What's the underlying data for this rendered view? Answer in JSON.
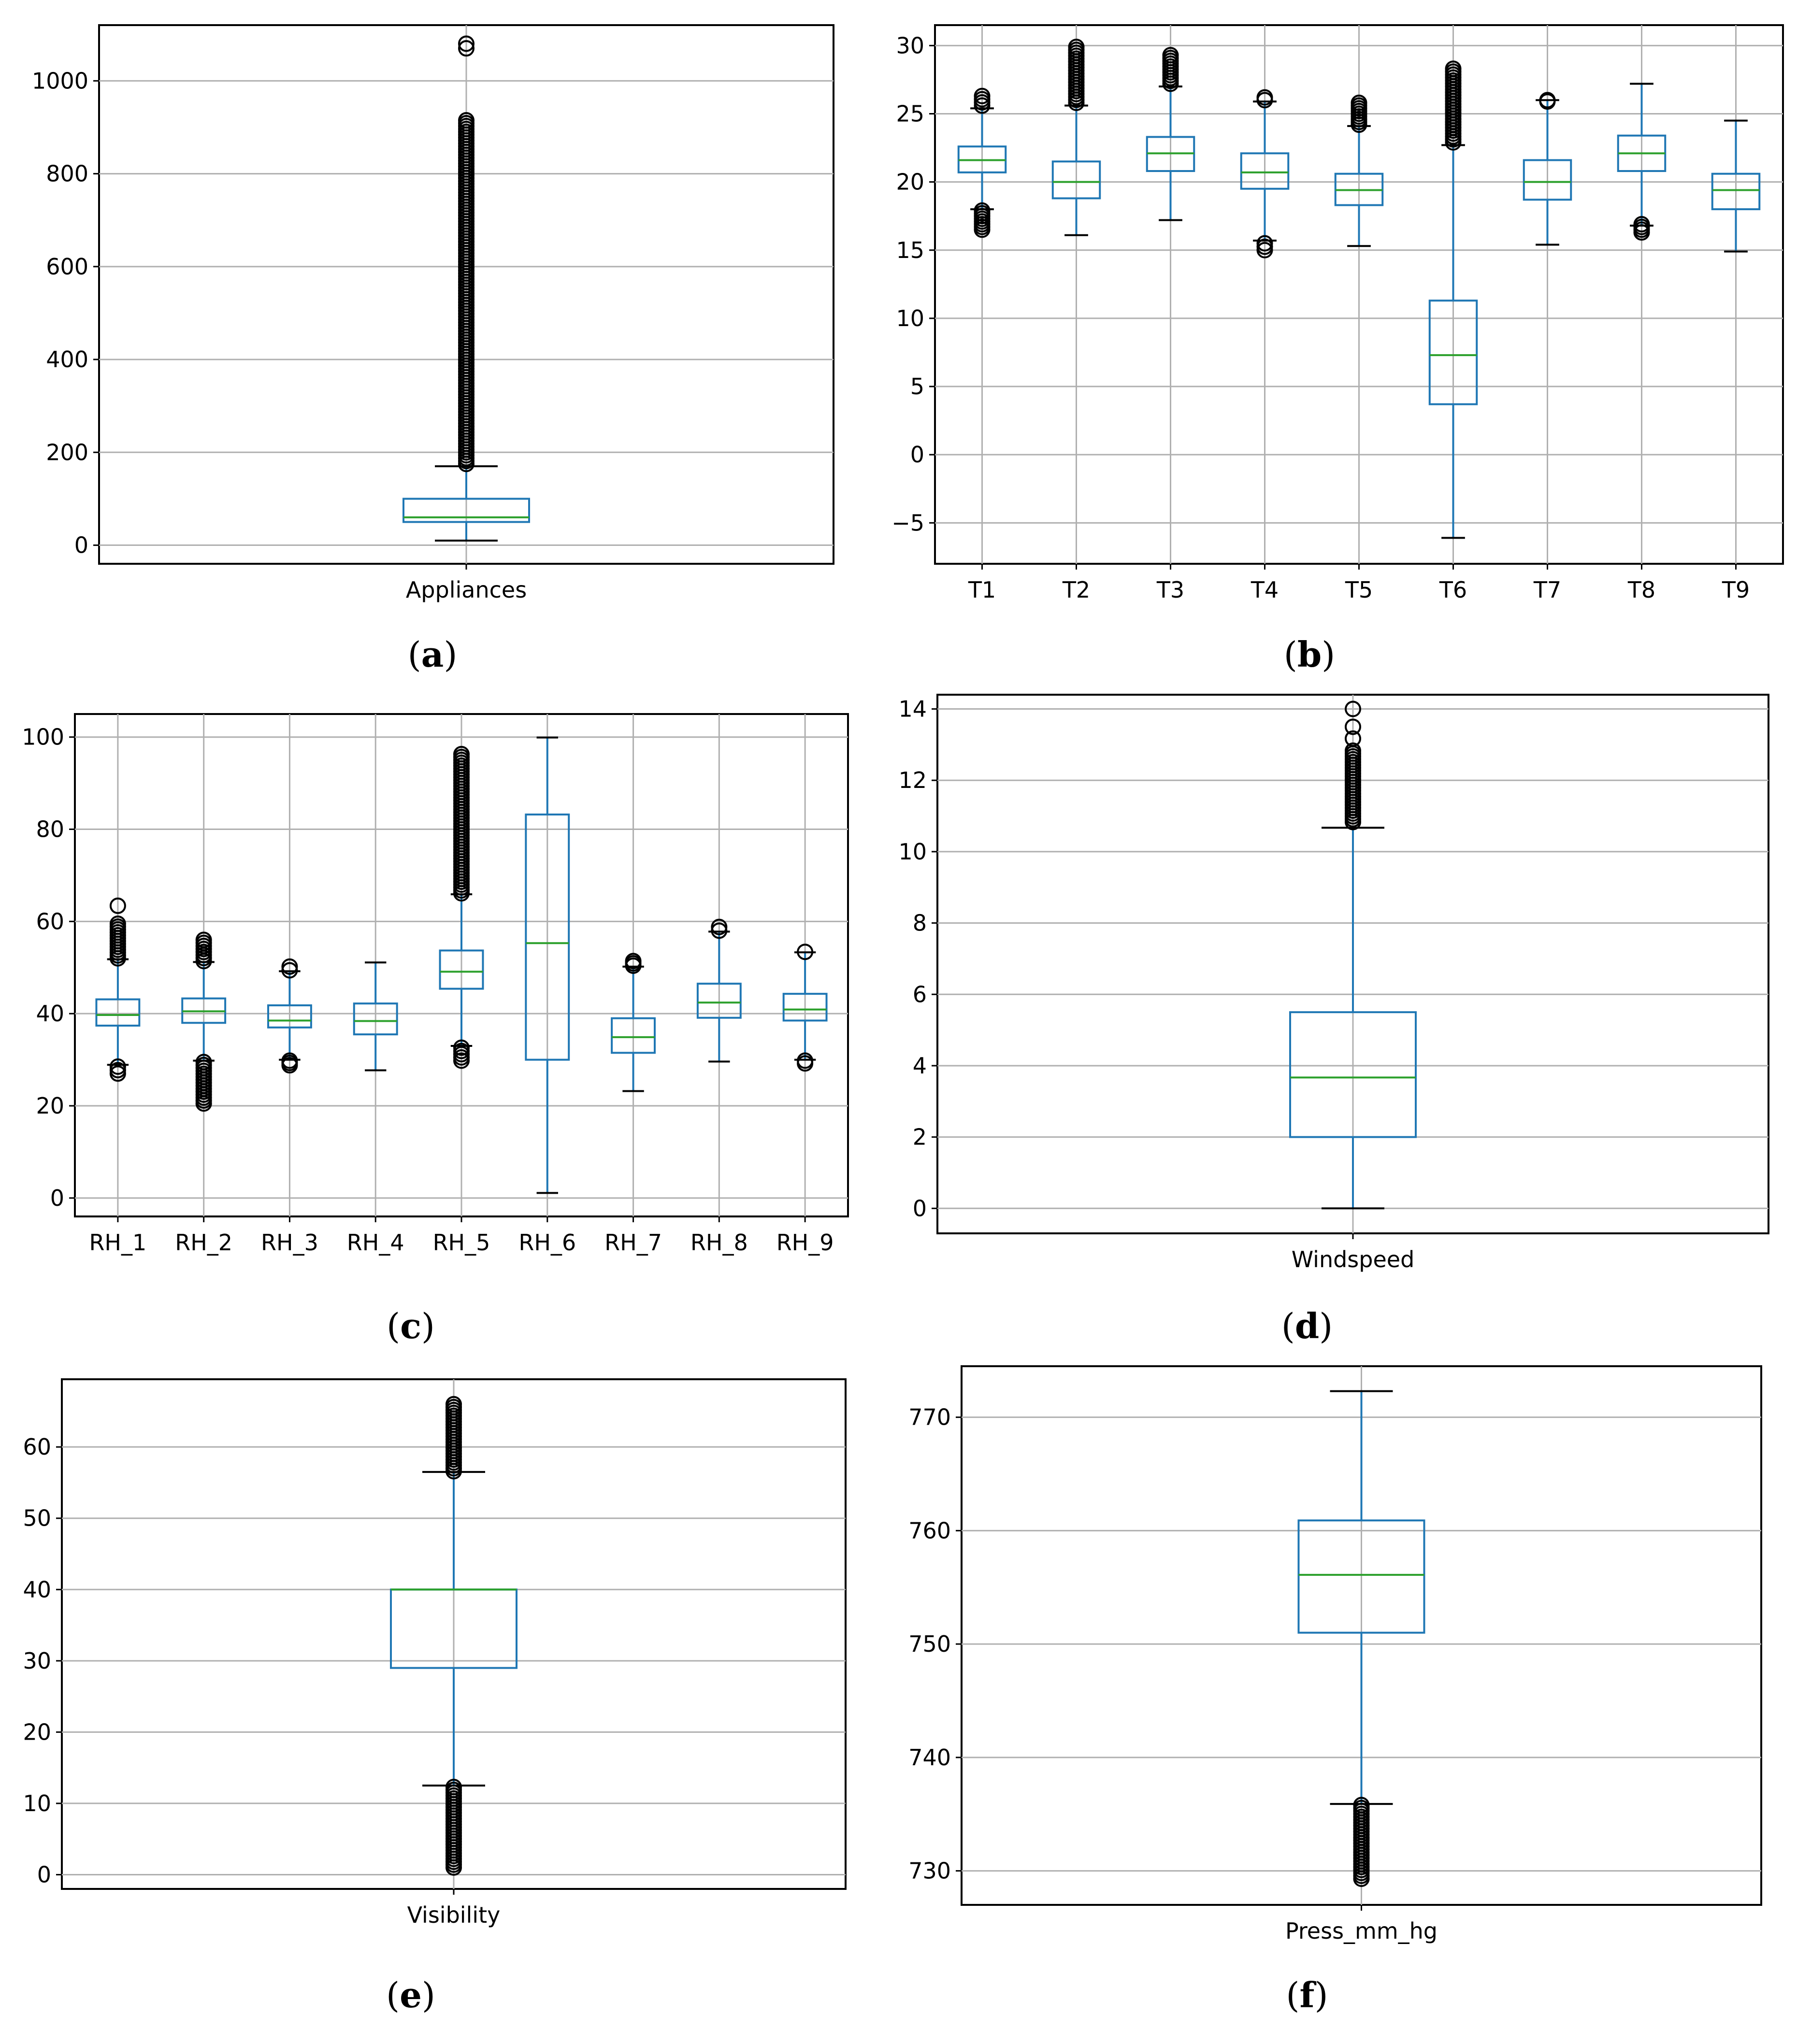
{
  "figure": {
    "captions": [
      "(a)",
      "(b)",
      "(c)",
      "(d)",
      "(e)",
      "(f)"
    ]
  },
  "colors": {
    "box": "#1f77b4",
    "median": "#2ca02c",
    "grid": "#b0b0b0",
    "outlier": "#000000",
    "axes": "#000000"
  },
  "chart_data": [
    {
      "panel": "a",
      "caption": "(a)",
      "type": "box",
      "ylim": [
        -40,
        1120
      ],
      "yticks": [
        0,
        200,
        400,
        600,
        800,
        1000
      ],
      "categories": [
        "Appliances"
      ],
      "boxes": [
        {
          "name": "Appliances",
          "whislo": 10,
          "q1": 50,
          "med": 60,
          "q3": 100,
          "whishi": 170,
          "outliers_high": [
            175,
            915
          ],
          "outliers_low": null,
          "extra_outliers": [
            1070,
            1080
          ]
        }
      ]
    },
    {
      "panel": "b",
      "caption": "(b)",
      "type": "box",
      "ylim": [
        -8,
        31.5
      ],
      "yticks": [
        -5,
        0,
        5,
        10,
        15,
        20,
        25,
        30
      ],
      "ytick_labels": [
        "−5",
        "0",
        "5",
        "10",
        "15",
        "20",
        "25",
        "30"
      ],
      "categories": [
        "T1",
        "T2",
        "T3",
        "T4",
        "T5",
        "T6",
        "T7",
        "T8",
        "T9"
      ],
      "boxes": [
        {
          "name": "T1",
          "whislo": 18.0,
          "q1": 20.7,
          "med": 21.6,
          "q3": 22.6,
          "whishi": 25.4,
          "outliers_high": [
            25.6,
            26.3
          ],
          "outliers_low": [
            16.5,
            17.9
          ],
          "extra_outliers": []
        },
        {
          "name": "T2",
          "whislo": 16.1,
          "q1": 18.8,
          "med": 20.0,
          "q3": 21.5,
          "whishi": 25.6,
          "outliers_high": [
            25.8,
            29.9
          ],
          "outliers_low": null,
          "extra_outliers": []
        },
        {
          "name": "T3",
          "whislo": 17.2,
          "q1": 20.8,
          "med": 22.1,
          "q3": 23.3,
          "whishi": 27.0,
          "outliers_high": [
            27.2,
            29.3
          ],
          "outliers_low": null,
          "extra_outliers": []
        },
        {
          "name": "T4",
          "whislo": 15.7,
          "q1": 19.5,
          "med": 20.7,
          "q3": 22.1,
          "whishi": 25.9,
          "outliers_high": [
            26.0,
            26.2
          ],
          "outliers_low": [
            15.0,
            15.5
          ],
          "extra_outliers": []
        },
        {
          "name": "T5",
          "whislo": 15.3,
          "q1": 18.3,
          "med": 19.4,
          "q3": 20.6,
          "whishi": 24.1,
          "outliers_high": [
            24.2,
            25.8
          ],
          "outliers_low": null,
          "extra_outliers": []
        },
        {
          "name": "T6",
          "whislo": -6.1,
          "q1": 3.7,
          "med": 7.3,
          "q3": 11.3,
          "whishi": 22.7,
          "outliers_high": [
            22.9,
            28.3
          ],
          "outliers_low": null,
          "extra_outliers": []
        },
        {
          "name": "T7",
          "whislo": 15.4,
          "q1": 18.7,
          "med": 20.0,
          "q3": 21.6,
          "whishi": 26.0,
          "outliers_high": [
            25.9,
            26.0
          ],
          "outliers_low": null,
          "extra_outliers": []
        },
        {
          "name": "T8",
          "whislo": 16.8,
          "q1": 20.8,
          "med": 22.1,
          "q3": 23.4,
          "whishi": 27.2,
          "outliers_high": null,
          "outliers_low": [
            16.3,
            16.9
          ],
          "extra_outliers": []
        },
        {
          "name": "T9",
          "whislo": 14.9,
          "q1": 18.0,
          "med": 19.4,
          "q3": 20.6,
          "whishi": 24.5,
          "outliers_high": null,
          "outliers_low": null,
          "extra_outliers": []
        }
      ]
    },
    {
      "panel": "c",
      "caption": "(c)",
      "type": "box",
      "ylim": [
        -4,
        105
      ],
      "yticks": [
        0,
        20,
        40,
        60,
        80,
        100
      ],
      "categories": [
        "RH_1",
        "RH_2",
        "RH_3",
        "RH_4",
        "RH_5",
        "RH_6",
        "RH_7",
        "RH_8",
        "RH_9"
      ],
      "boxes": [
        {
          "name": "RH_1",
          "whislo": 28.9,
          "q1": 37.4,
          "med": 39.7,
          "q3": 43.1,
          "whishi": 51.8,
          "outliers_high": [
            52.0,
            59.5
          ],
          "outliers_low": [
            27.0,
            28.5
          ],
          "extra_outliers": [
            63.4
          ]
        },
        {
          "name": "RH_2",
          "whislo": 29.8,
          "q1": 38.0,
          "med": 40.5,
          "q3": 43.3,
          "whishi": 51.2,
          "outliers_high": [
            51.4,
            56.0
          ],
          "outliers_low": [
            20.5,
            29.5
          ],
          "extra_outliers": []
        },
        {
          "name": "RH_3",
          "whislo": 30.0,
          "q1": 37.0,
          "med": 38.5,
          "q3": 41.8,
          "whishi": 49.2,
          "outliers_high": [
            49.4,
            50.2
          ],
          "outliers_low": [
            28.8,
            29.8
          ],
          "extra_outliers": []
        },
        {
          "name": "RH_4",
          "whislo": 27.7,
          "q1": 35.5,
          "med": 38.4,
          "q3": 42.2,
          "whishi": 51.1,
          "outliers_high": null,
          "outliers_low": null,
          "extra_outliers": []
        },
        {
          "name": "RH_5",
          "whislo": 33.0,
          "q1": 45.4,
          "med": 49.1,
          "q3": 53.7,
          "whishi": 65.9,
          "outliers_high": [
            66.1,
            96.3
          ],
          "outliers_low": [
            29.8,
            32.6
          ],
          "extra_outliers": []
        },
        {
          "name": "RH_6",
          "whislo": 1.1,
          "q1": 30.0,
          "med": 55.3,
          "q3": 83.2,
          "whishi": 99.9,
          "outliers_high": null,
          "outliers_low": null,
          "extra_outliers": []
        },
        {
          "name": "RH_7",
          "whislo": 23.2,
          "q1": 31.5,
          "med": 34.9,
          "q3": 39.0,
          "whishi": 50.2,
          "outliers_high": [
            50.4,
            51.4
          ],
          "outliers_low": null,
          "extra_outliers": []
        },
        {
          "name": "RH_8",
          "whislo": 29.6,
          "q1": 39.1,
          "med": 42.4,
          "q3": 46.5,
          "whishi": 57.8,
          "outliers_high": [
            58.0,
            58.8
          ],
          "outliers_low": null,
          "extra_outliers": []
        },
        {
          "name": "RH_9",
          "whislo": 30.0,
          "q1": 38.5,
          "med": 40.9,
          "q3": 44.3,
          "whishi": 53.3,
          "outliers_high": null,
          "outliers_low": [
            29.2,
            29.8
          ],
          "extra_outliers": [
            53.4
          ]
        }
      ]
    },
    {
      "panel": "d",
      "caption": "(d)",
      "type": "box",
      "ylim": [
        -0.7,
        14.4
      ],
      "yticks": [
        0,
        2,
        4,
        6,
        8,
        10,
        12,
        14
      ],
      "categories": [
        "Windspeed"
      ],
      "boxes": [
        {
          "name": "Windspeed",
          "whislo": 0,
          "q1": 2.0,
          "med": 3.67,
          "q3": 5.5,
          "whishi": 10.67,
          "outliers_high": [
            10.83,
            12.83
          ],
          "outliers_low": null,
          "extra_outliers": [
            13.17,
            13.5,
            14.0
          ]
        }
      ]
    },
    {
      "panel": "e",
      "caption": "(e)",
      "type": "box",
      "ylim": [
        -2,
        69.5
      ],
      "yticks": [
        0,
        10,
        20,
        30,
        40,
        50,
        60
      ],
      "categories": [
        "Visibility"
      ],
      "boxes": [
        {
          "name": "Visibility",
          "whislo": 12.5,
          "q1": 29.0,
          "med": 40.0,
          "q3": 40.0,
          "whishi": 56.5,
          "outliers_high": [
            56.6,
            66.0
          ],
          "outliers_low": [
            1.0,
            12.3
          ],
          "extra_outliers": []
        }
      ]
    },
    {
      "panel": "f",
      "caption": "(f)",
      "type": "box",
      "ylim": [
        727,
        774.5
      ],
      "yticks": [
        730,
        740,
        750,
        760,
        770
      ],
      "categories": [
        "Press_mm_hg"
      ],
      "boxes": [
        {
          "name": "Press_mm_hg",
          "whislo": 735.9,
          "q1": 751.0,
          "med": 756.1,
          "q3": 760.9,
          "whishi": 772.3,
          "outliers_high": null,
          "outliers_low": [
            729.3,
            735.8
          ],
          "extra_outliers": []
        }
      ]
    }
  ]
}
